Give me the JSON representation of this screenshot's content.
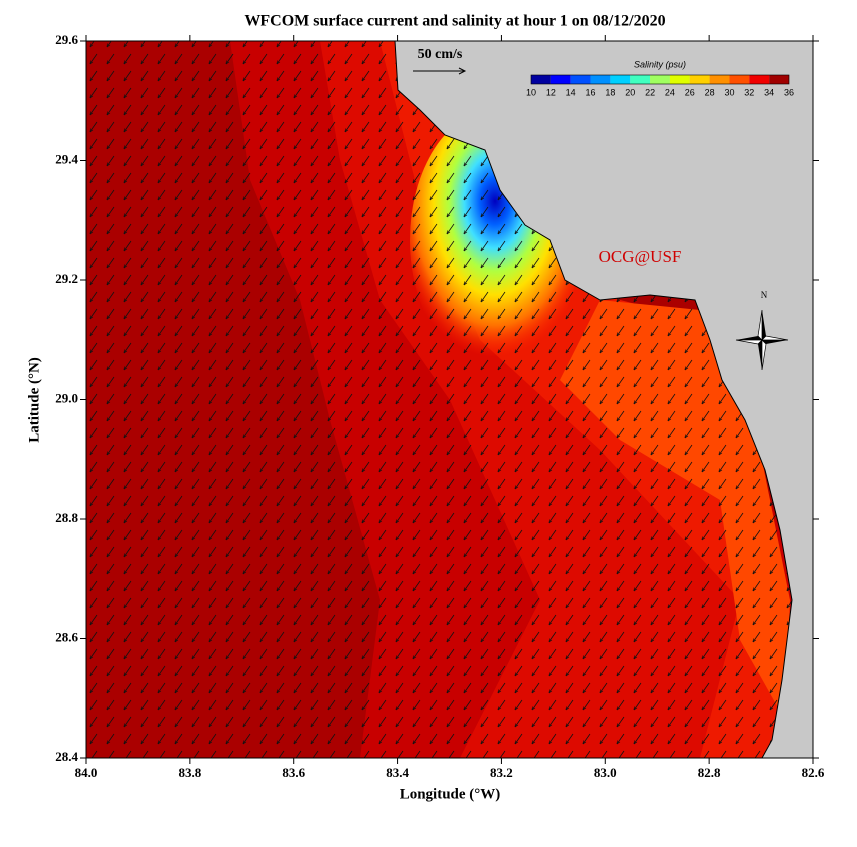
{
  "chart_data": {
    "type": "map",
    "title": "WFCOM surface current and salinity at hour 1 on 08/12/2020",
    "xlabel": "Longitude (°W)",
    "ylabel": "Latitude (°N)",
    "xlim": [
      84.0,
      82.6
    ],
    "ylim": [
      28.4,
      29.6
    ],
    "xticks": [
      {
        "value": 84.0,
        "label": "84.0"
      },
      83.8,
      83.6,
      83.4,
      83.2,
      {
        "value": 83.0,
        "label": "83.0"
      },
      82.8,
      82.6
    ],
    "yticks": [
      28.4,
      28.6,
      28.8,
      {
        "value": 29.0,
        "label": "29.0"
      },
      29.2,
      29.4,
      29.6
    ],
    "scale_label": "50 cm/s",
    "credit": "OCG@USF",
    "compass_label": "N",
    "colorbar": {
      "title": "Salinity (psu)",
      "ticks": [
        10,
        12,
        14,
        16,
        18,
        20,
        22,
        24,
        26,
        28,
        30,
        32,
        34,
        36
      ],
      "colors": [
        "#0000a0",
        "#0000ff",
        "#0050ff",
        "#0090ff",
        "#00d0ff",
        "#40ffc0",
        "#a0ff60",
        "#e0ff00",
        "#ffd000",
        "#ff9000",
        "#ff5000",
        "#f00000",
        "#a00000"
      ]
    }
  }
}
